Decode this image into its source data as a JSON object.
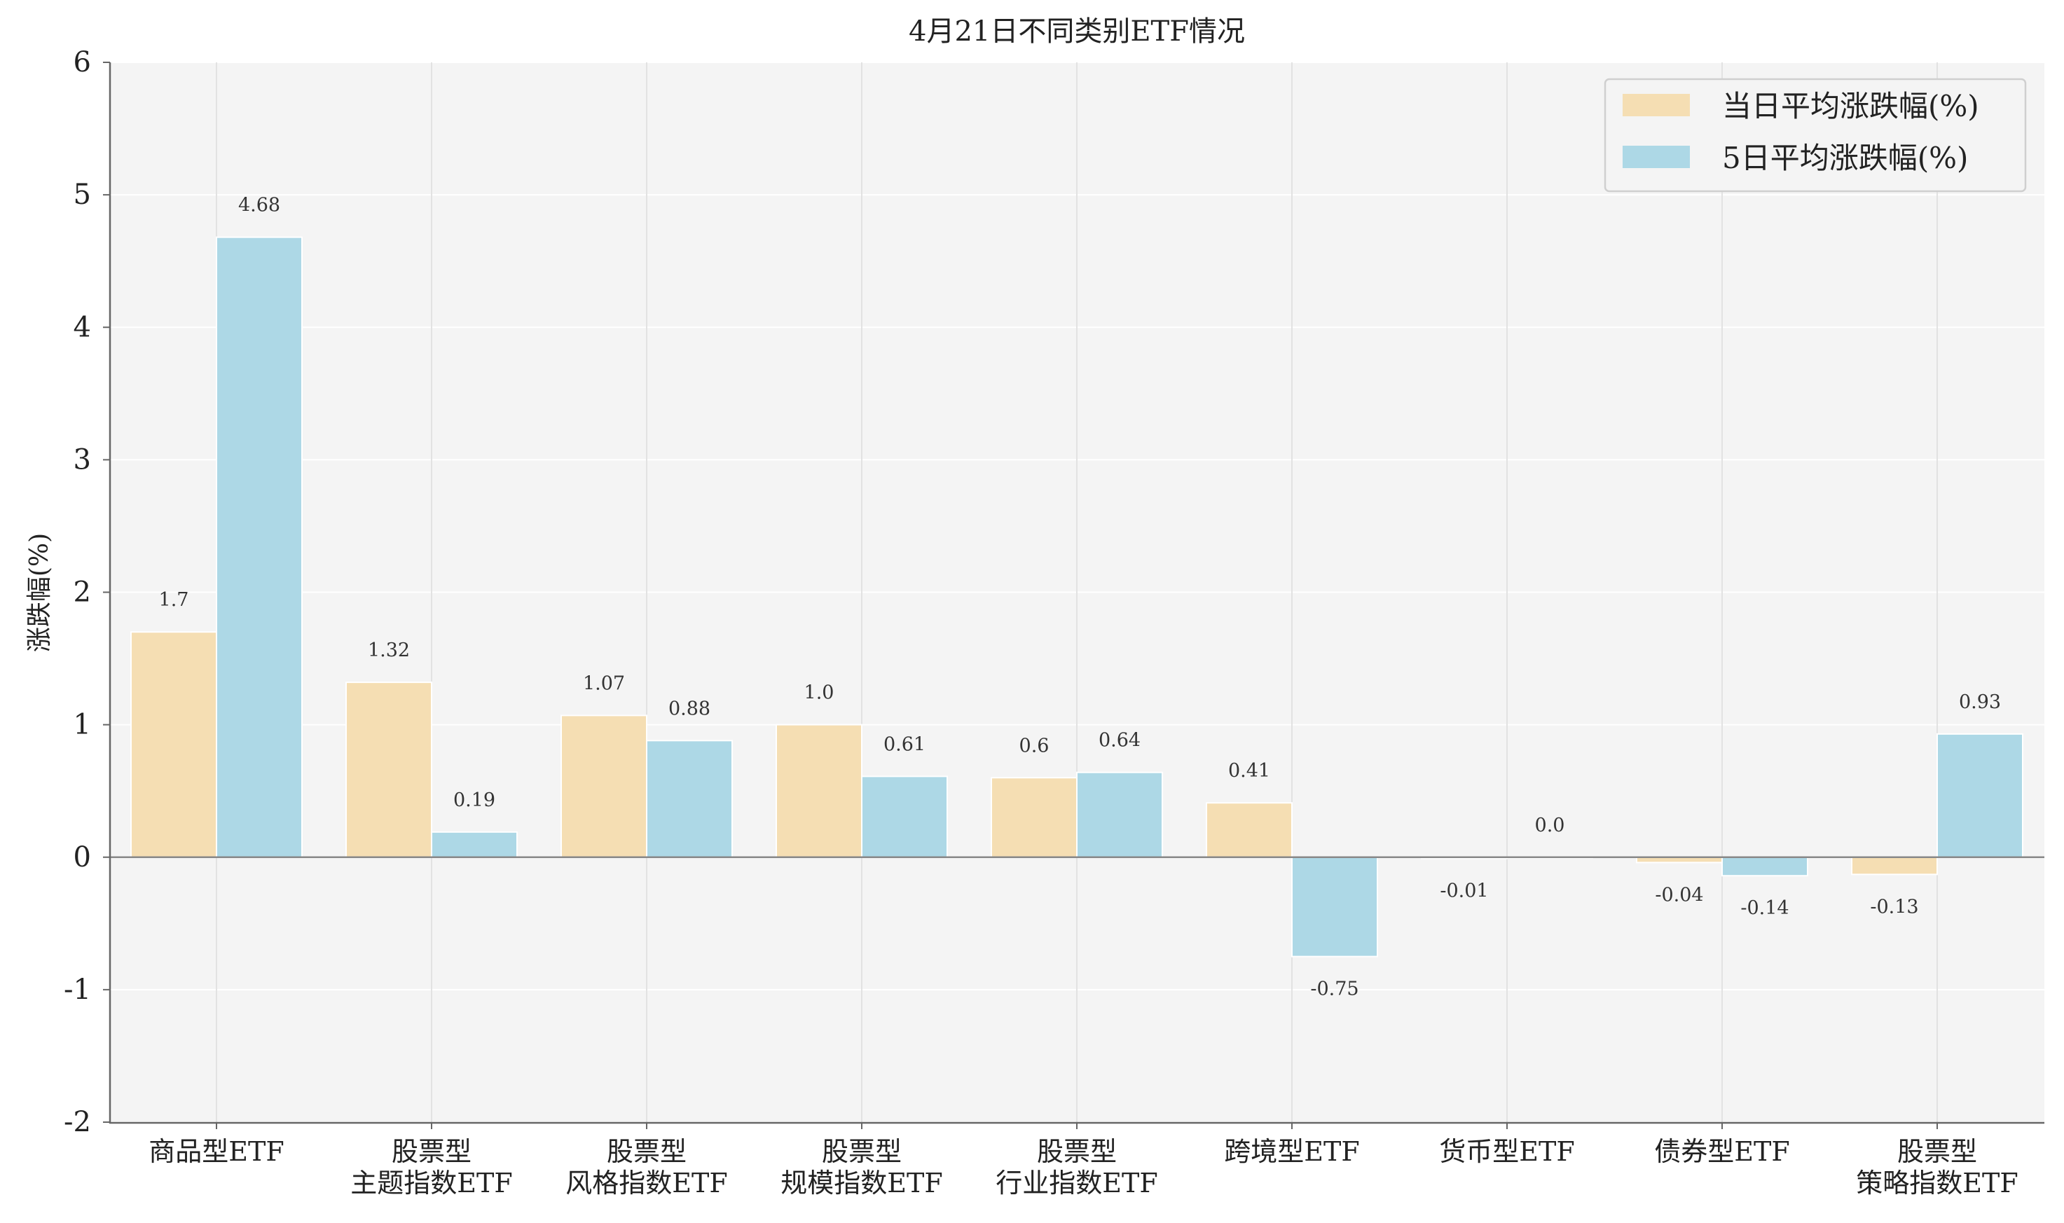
{
  "chart_data": {
    "type": "bar",
    "title": "4月21日不同类别ETF情况",
    "xlabel": "",
    "ylabel": "涨跌幅(%)",
    "ylim": [
      -2,
      6
    ],
    "yticks": [
      "6",
      "5",
      "4",
      "3",
      "2",
      "1",
      "0",
      "-1",
      "-2"
    ],
    "grid": true,
    "legend_position": "top-right",
    "categories": [
      [
        "商品型ETF"
      ],
      [
        "股票型",
        "主题指数ETF"
      ],
      [
        "股票型",
        "风格指数ETF"
      ],
      [
        "股票型",
        "规模指数ETF"
      ],
      [
        "股票型",
        "行业指数ETF"
      ],
      [
        "跨境型ETF"
      ],
      [
        "货币型ETF"
      ],
      [
        "债券型ETF"
      ],
      [
        "股票型",
        "策略指数ETF"
      ]
    ],
    "series": [
      {
        "name": "当日平均涨跌幅(%)",
        "color": "#f5deb3",
        "values": [
          1.7,
          1.32,
          1.07,
          1.0,
          0.6,
          0.41,
          -0.01,
          -0.04,
          -0.13
        ],
        "labels": [
          "1.7",
          "1.32",
          "1.07",
          "1.0",
          "0.6",
          "0.41",
          "-0.01",
          "-0.04",
          "-0.13"
        ]
      },
      {
        "name": "5日平均涨跌幅(%)",
        "color": "#add8e6",
        "values": [
          4.68,
          0.19,
          0.88,
          0.61,
          0.64,
          -0.75,
          0.0,
          -0.14,
          0.93
        ],
        "labels": [
          "4.68",
          "0.19",
          "0.88",
          "0.61",
          "0.64",
          "-0.75",
          "0.0",
          "-0.14",
          "0.93"
        ]
      }
    ]
  }
}
